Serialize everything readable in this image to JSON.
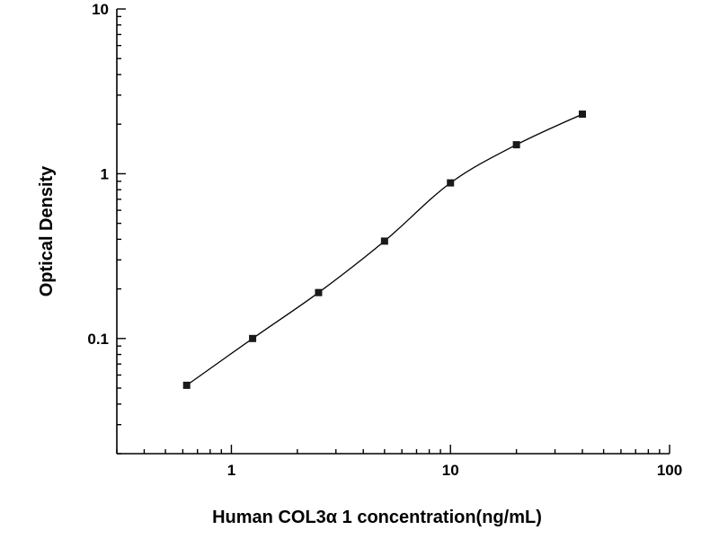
{
  "chart_data": {
    "type": "scatter",
    "title": "",
    "xlabel": "Human COL3α 1 concentration(ng/mL)",
    "ylabel": "Optical Density",
    "xscale": "log",
    "yscale": "log",
    "xlim": [
      0.3,
      100
    ],
    "ylim": [
      0.02,
      10
    ],
    "x_tick_labels": [
      1,
      10,
      100
    ],
    "y_tick_labels": [
      0.1,
      1,
      10
    ],
    "grid": false,
    "legend": "none",
    "marker": "filled-square",
    "curve": "smooth-fit-line",
    "points": [
      {
        "x": 0.625,
        "y": 0.052
      },
      {
        "x": 1.25,
        "y": 0.1
      },
      {
        "x": 2.5,
        "y": 0.19
      },
      {
        "x": 5,
        "y": 0.39
      },
      {
        "x": 10,
        "y": 0.88
      },
      {
        "x": 20,
        "y": 1.5
      },
      {
        "x": 40,
        "y": 2.3
      }
    ],
    "colors": {
      "axis": "#000000",
      "marker": "#1a1a1a",
      "curve": "#000000",
      "background": "#ffffff"
    }
  }
}
